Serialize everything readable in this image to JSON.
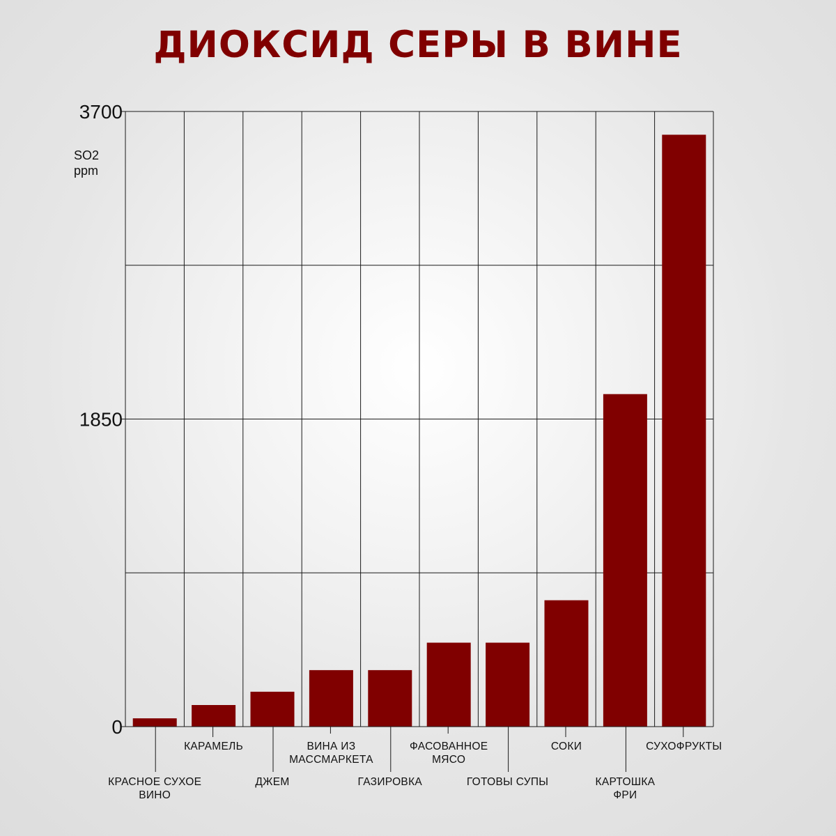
{
  "chart_data": {
    "type": "bar",
    "title": "ДИОКСИД СЕРЫ В ВИНЕ",
    "ylabel": [
      "SO2",
      "ppm"
    ],
    "xlabel": "",
    "ylim": [
      0,
      3700
    ],
    "yticks": [
      0,
      1850,
      3700
    ],
    "ytick_labels": [
      "0",
      "1850",
      "3700"
    ],
    "grid": true,
    "bar_color": "#800000",
    "categories": [
      [
        "КРАСНОЕ СУХОЕ",
        "ВИНО"
      ],
      [
        "КАРАМЕЛЬ"
      ],
      [
        "ДЖЕМ"
      ],
      [
        "ВИНА ИЗ",
        "МАССМАРКЕТА"
      ],
      [
        "ГАЗИРОВКА"
      ],
      [
        "ФАСОВАННОЕ",
        "МЯСО"
      ],
      [
        "ГОТОВЫ СУПЫ"
      ],
      [
        "СОКИ"
      ],
      [
        "КАРТОШКА",
        "ФРИ"
      ],
      [
        "СУХОФРУКТЫ"
      ]
    ],
    "values": [
      50,
      130,
      210,
      340,
      340,
      505,
      505,
      760,
      2000,
      3560
    ]
  }
}
